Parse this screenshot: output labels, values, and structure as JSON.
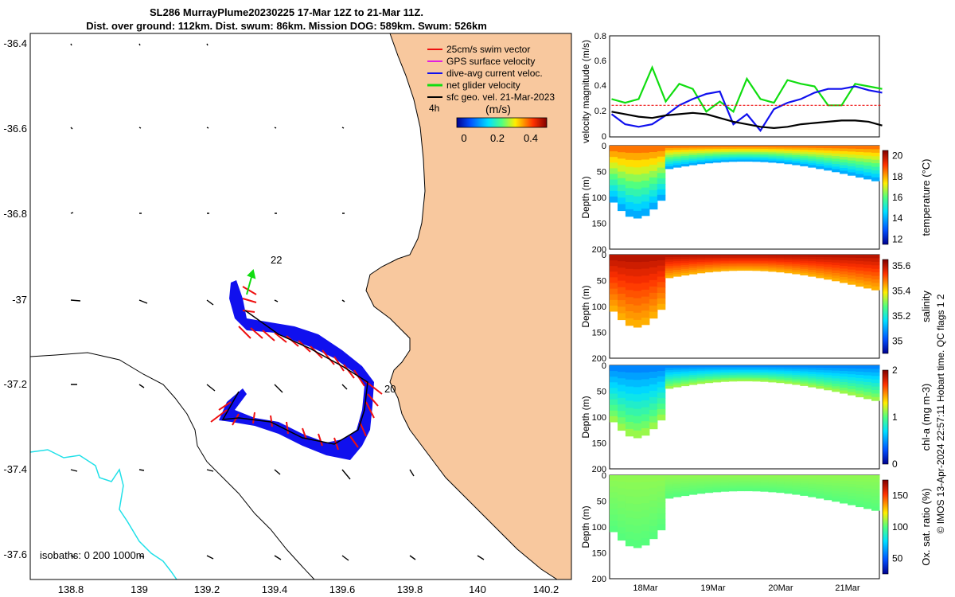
{
  "title": {
    "line1": "SL286 MurrayPlume20230225 17-Mar 12Z to 21-Mar 11Z.",
    "line2": "Dist. over ground: 112km. Dist. swum: 86km. Mission DOG: 589km. Swum: 526km"
  },
  "colors": {
    "land": "#f8c89e",
    "river": "#20e0e8",
    "track": "#1010ee",
    "swim": "#ee1010",
    "gps": "#e020e0",
    "net": "#10dd10",
    "geo": "#000000"
  },
  "map": {
    "lat_ticks": [
      "-36.4",
      "-36.6",
      "-36.8",
      "-37",
      "-37.2",
      "-37.4",
      "-37.6"
    ],
    "lon_ticks": [
      "138.8",
      "139",
      "139.2",
      "139.4",
      "139.6",
      "139.8",
      "140",
      "140.2"
    ],
    "labels": {
      "day22": "22",
      "day20": "20",
      "duration": "4h",
      "isobaths": "isobaths: 0   200  1000m"
    },
    "legend": [
      {
        "label": "25cm/s swim vector",
        "color": "#ee1010"
      },
      {
        "label": "GPS surface velocity",
        "color": "#e020e0"
      },
      {
        "label": "dive-avg current veloc.",
        "color": "#1010ee"
      },
      {
        "label": "net glider velocity",
        "color": "#10dd10"
      },
      {
        "label": "sfc geo. vel. 21-Mar-2023",
        "color": "#000000"
      }
    ],
    "colorbar": {
      "unit": "(m/s)",
      "ticks": [
        "0",
        "0.2",
        "0.4"
      ]
    }
  },
  "chart_data": [
    {
      "type": "line",
      "title": "",
      "ylabel": "velocity magnitude (m/s)",
      "ylim": [
        0,
        0.8
      ],
      "yticks": [
        "0",
        "0.2",
        "0.4",
        "0.6",
        "0.8"
      ],
      "x": [
        17.5,
        17.7,
        17.9,
        18.1,
        18.3,
        18.5,
        18.7,
        18.9,
        19.1,
        19.3,
        19.5,
        19.7,
        19.9,
        20.1,
        20.3,
        20.5,
        20.7,
        20.9,
        21.1,
        21.3,
        21.5
      ],
      "series": [
        {
          "name": "net glider velocity",
          "color": "#10dd10",
          "values": [
            0.3,
            0.27,
            0.3,
            0.55,
            0.28,
            0.42,
            0.38,
            0.2,
            0.28,
            0.2,
            0.46,
            0.3,
            0.27,
            0.45,
            0.42,
            0.4,
            0.25,
            0.25,
            0.42,
            0.4,
            0.38
          ]
        },
        {
          "name": "dive-avg current veloc.",
          "color": "#1010ee",
          "values": [
            0.18,
            0.1,
            0.08,
            0.1,
            0.17,
            0.25,
            0.3,
            0.34,
            0.36,
            0.1,
            0.18,
            0.05,
            0.22,
            0.27,
            0.3,
            0.35,
            0.38,
            0.38,
            0.4,
            0.37,
            0.35
          ]
        },
        {
          "name": "25cm/s swim vector",
          "color": "#ee1010",
          "values": [
            0.25,
            0.25,
            0.25,
            0.25,
            0.25,
            0.25,
            0.25,
            0.25,
            0.25,
            0.25,
            0.25,
            0.25,
            0.25,
            0.25,
            0.25,
            0.25,
            0.25,
            0.25,
            0.25,
            0.25,
            0.25
          ]
        },
        {
          "name": "sfc geo. vel. 21-Mar-2023",
          "color": "#000000",
          "values": [
            0.2,
            0.18,
            0.16,
            0.15,
            0.17,
            0.18,
            0.19,
            0.18,
            0.15,
            0.12,
            0.1,
            0.08,
            0.07,
            0.08,
            0.1,
            0.11,
            0.12,
            0.13,
            0.13,
            0.12,
            0.09
          ]
        }
      ]
    },
    {
      "type": "heatmap",
      "variable": "temperature",
      "ylabel": "Depth (m)",
      "colorbar_label": "temperature (°C)",
      "clim": [
        11.5,
        20.5
      ],
      "colorbar_ticks": [
        "12",
        "14",
        "16",
        "18",
        "20"
      ],
      "ylim": [
        200,
        0
      ],
      "yticks": [
        "0",
        "50",
        "100",
        "150",
        "200"
      ],
      "surface_value": 18.5,
      "bottom_value": 13.5
    },
    {
      "type": "heatmap",
      "variable": "salinity",
      "ylabel": "Depth (m)",
      "colorbar_label": "salinity",
      "clim": [
        34.9,
        35.65
      ],
      "colorbar_ticks": [
        "35",
        "35.2",
        "35.4",
        "35.6"
      ],
      "ylim": [
        200,
        0
      ],
      "yticks": [
        "0",
        "50",
        "100",
        "150",
        "200"
      ],
      "surface_value": 35.6,
      "bottom_value": 35.42
    },
    {
      "type": "heatmap",
      "variable": "chl-a",
      "ylabel": "Depth (m)",
      "colorbar_label": "chl-a (mg m-3)",
      "clim": [
        0,
        2
      ],
      "colorbar_ticks": [
        "0",
        "1",
        "2"
      ],
      "ylim": [
        200,
        0
      ],
      "yticks": [
        "0",
        "50",
        "100",
        "150",
        "200"
      ],
      "surface_value": 0.45,
      "bottom_value": 1.2
    },
    {
      "type": "heatmap",
      "variable": "oxygen",
      "ylabel": "Depth (m)",
      "colorbar_label": "Ox. sat. ratio (%)",
      "clim": [
        25,
        175
      ],
      "colorbar_ticks": [
        "50",
        "100",
        "150"
      ],
      "ylim": [
        200,
        0
      ],
      "yticks": [
        "0",
        "50",
        "100",
        "150",
        "200"
      ],
      "surface_value": 108,
      "bottom_value": 100
    }
  ],
  "time_axis": {
    "ticks": [
      "18Mar",
      "19Mar",
      "20Mar",
      "21Mar"
    ]
  },
  "side_note": "© IMOS 13-Apr-2024 22:57:11 Hobart time. QC flags 1 2"
}
